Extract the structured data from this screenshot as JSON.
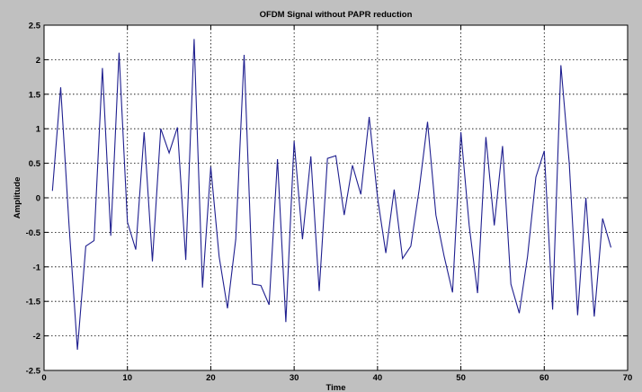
{
  "chart_data": {
    "type": "line",
    "title": "OFDM Signal without PAPR reduction",
    "xlabel": "Time",
    "ylabel": "Amplitude",
    "xlim": [
      0,
      70
    ],
    "ylim": [
      -2.5,
      2.5
    ],
    "xticks": [
      0,
      10,
      20,
      30,
      40,
      50,
      60,
      70
    ],
    "yticks": [
      2.5,
      2,
      1.5,
      1,
      0.5,
      0,
      -0.5,
      -1,
      -1.5,
      -2,
      -2.5
    ],
    "xtick_labels": [
      "0",
      "10",
      "20",
      "30",
      "40",
      "50",
      "60",
      "70"
    ],
    "ytick_labels": [
      "2.5",
      "2",
      "1.5",
      "1",
      "0.5",
      "0",
      "-0.5",
      "-1",
      "-1.5",
      "-2",
      "-2.5"
    ],
    "grid": true,
    "line_color": "#1f1f8f",
    "x": [
      1,
      2,
      3,
      4,
      5,
      6,
      7,
      8,
      9,
      10,
      11,
      12,
      13,
      14,
      15,
      16,
      17,
      18,
      19,
      20,
      21,
      22,
      23,
      24,
      25,
      26,
      27,
      28,
      29,
      30,
      31,
      32,
      33,
      34,
      35,
      36,
      37,
      38,
      39,
      40,
      41,
      42,
      43,
      44,
      45,
      46,
      47,
      48,
      49,
      50,
      51,
      52,
      53,
      54,
      55,
      56,
      57,
      58,
      59,
      60,
      61,
      62,
      63,
      64,
      65,
      66,
      67,
      68
    ],
    "y": [
      0.1,
      1.6,
      -0.4,
      -2.2,
      -0.7,
      -0.62,
      1.88,
      -0.55,
      2.1,
      -0.35,
      -0.75,
      0.95,
      -0.92,
      1.0,
      0.65,
      1.02,
      -0.9,
      2.3,
      -1.3,
      0.45,
      -0.85,
      -1.6,
      -0.6,
      2.07,
      -1.25,
      -1.27,
      -1.55,
      0.56,
      -1.8,
      0.82,
      -0.6,
      0.6,
      -1.35,
      0.57,
      0.61,
      -0.25,
      0.47,
      0.05,
      1.17,
      0.0,
      -0.8,
      0.12,
      -0.88,
      -0.7,
      0.12,
      1.1,
      -0.25,
      -0.85,
      -1.37,
      0.95,
      -0.4,
      -1.38,
      0.88,
      -0.4,
      0.75,
      -1.25,
      -1.67,
      -0.85,
      0.3,
      0.68,
      -1.62,
      1.92,
      0.5,
      -1.7,
      0.0,
      -1.72,
      -0.3,
      -0.72
    ]
  }
}
